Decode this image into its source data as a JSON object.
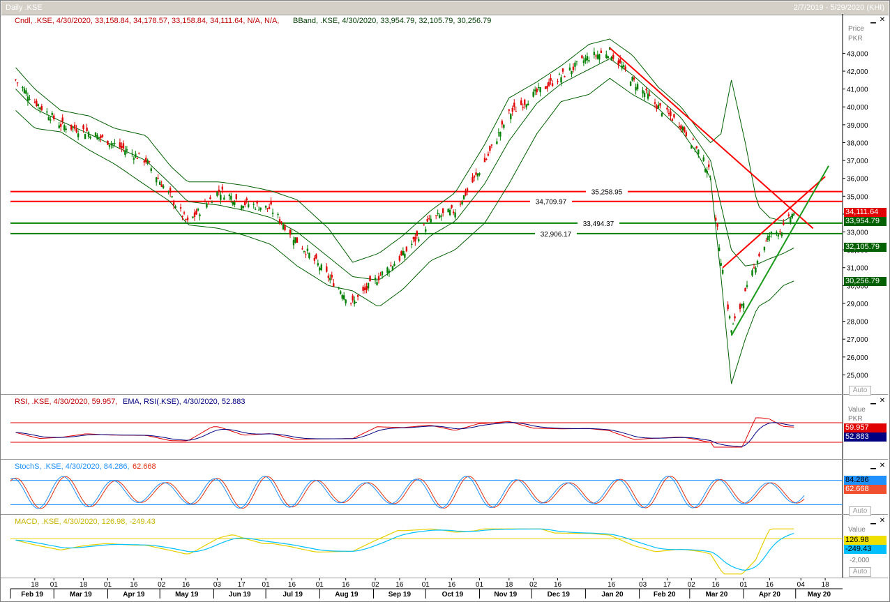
{
  "window": {
    "title": "Daily .KSE",
    "range": "2/7/2019 - 5/29/2020 (KHI)"
  },
  "price_panel": {
    "cndl_legend": "Cndl, .KSE, 4/30/2020, 33,158.84, 34,178.57, 33,158.84, 34,111.64, N/A, N/A,",
    "bband_legend": "BBand, .KSE, 4/30/2020, 33,954.79, 32,105.79, 30,256.79",
    "axis_title": "Price",
    "axis_unit": "PKR",
    "auto_label": "Auto",
    "last_close_box": "34,111.64",
    "bb_upper_box": "33,954.79",
    "bb_mid_box": "32,105.79",
    "bb_lower_box": "30,256.79",
    "hline_labels": [
      "35,258.95",
      "34,709.97",
      "33,494.37",
      "32,906.17"
    ]
  },
  "rsi_panel": {
    "legend_a": "RSI, .KSE, 4/30/2020, 59.957,",
    "legend_b": "EMA, RSI(.KSE), 4/30/2020, 52.883",
    "axis_title": "Value",
    "axis_unit": "PKR",
    "value_box_1": "59.957",
    "value_box_2": "52.883"
  },
  "stoch_panel": {
    "legend_a": "StochS, .KSE, 4/30/2020, 84.286,",
    "legend_b": "62.668",
    "auto_label": "Auto",
    "value_box_1": "84.286",
    "value_box_2": "62.668"
  },
  "macd_panel": {
    "legend": "MACD, .KSE, 4/30/2020, 126.98, -249.43",
    "axis_title": "Value",
    "tick": "-2,000",
    "auto_label": "Auto",
    "value_box_1": "126.98",
    "value_box_2": "-249.43"
  },
  "x_axis": {
    "day_ticks": [
      "18",
      "01",
      "18",
      "01",
      "16",
      "02",
      "16",
      "03",
      "17",
      "01",
      "16",
      "01",
      "16",
      "02",
      "16",
      "01",
      "16",
      "01",
      "18",
      "02",
      "16",
      "16",
      "03",
      "17",
      "02",
      "16",
      "01",
      "16",
      "04",
      "18"
    ],
    "month_labels": [
      "Feb 19",
      "Mar 19",
      "Apr 19",
      "May 19",
      "Jun 19",
      "Jul 19",
      "Aug 19",
      "Sep 19",
      "Oct 19",
      "Nov 19",
      "Dec 19",
      "Jan 20",
      "Feb 20",
      "Mar 20",
      "Apr 20",
      "May 20"
    ]
  },
  "colors": {
    "candle_up": "#008000",
    "candle_down": "#e00000",
    "resistance": "#ff0000",
    "support": "#008000",
    "bband": "#006000",
    "rsi": "#e00000",
    "rsi_ema": "#000080",
    "stoch_k": "#1e90ff",
    "stoch_d": "#e03010",
    "macd": "#e8d000",
    "macd_signal": "#00bfff"
  },
  "chart_data": {
    "type": "line",
    "title": "Daily .KSE",
    "ylabel": "Price PKR",
    "ylim": [
      24000,
      44500
    ],
    "y_ticks": [
      43000,
      42000,
      41000,
      40000,
      39000,
      38000,
      37000,
      36000,
      35000,
      34000,
      33000,
      32000,
      31000,
      30000,
      29000,
      28000,
      27000,
      26000,
      25000
    ],
    "x": [
      "2019-02-07",
      "2019-02-18",
      "2019-03-05",
      "2019-03-21",
      "2019-04-05",
      "2019-04-23",
      "2019-05-07",
      "2019-05-17",
      "2019-06-04",
      "2019-06-19",
      "2019-07-04",
      "2019-07-19",
      "2019-08-06",
      "2019-08-20",
      "2019-09-04",
      "2019-09-18",
      "2019-10-04",
      "2019-10-18",
      "2019-11-04",
      "2019-11-18",
      "2019-12-04",
      "2019-12-18",
      "2020-01-03",
      "2020-01-15",
      "2020-01-28",
      "2020-02-12",
      "2020-02-25",
      "2020-03-06",
      "2020-03-13",
      "2020-03-19",
      "2020-03-25",
      "2020-04-02",
      "2020-04-09",
      "2020-04-16",
      "2020-04-24",
      "2020-04-30"
    ],
    "series": [
      {
        "name": "Cndl, .KSE",
        "values": [
          41500,
          40300,
          39000,
          38600,
          37900,
          37000,
          35000,
          33500,
          35300,
          34600,
          34300,
          32500,
          30500,
          29000,
          30500,
          31700,
          33700,
          34200,
          36900,
          39600,
          40800,
          41700,
          42800,
          43100,
          41500,
          40000,
          39000,
          37500,
          36200,
          31500,
          27500,
          29500,
          31500,
          32800,
          33200,
          34111.64
        ]
      },
      {
        "name": "BBand upper",
        "values": [
          42200,
          41000,
          39800,
          39500,
          38800,
          38400,
          36700,
          35800,
          35800,
          35600,
          35300,
          34800,
          33200,
          31300,
          31800,
          32800,
          34200,
          35200,
          37900,
          40500,
          41400,
          42300,
          43500,
          43800,
          42900,
          41100,
          40000,
          38700,
          38000,
          38500,
          41500,
          38000,
          34500,
          33800,
          33600,
          33954.79
        ]
      },
      {
        "name": "BBand middle",
        "values": [
          41000,
          39900,
          39200,
          38500,
          37800,
          37000,
          35700,
          34700,
          34500,
          34200,
          33800,
          33000,
          31600,
          30500,
          30300,
          31300,
          32800,
          33600,
          35700,
          38100,
          40200,
          41300,
          42100,
          42700,
          41800,
          40500,
          39400,
          38000,
          37000,
          34500,
          32000,
          31100,
          31200,
          31500,
          31800,
          32105.79
        ]
      },
      {
        "name": "BBand lower",
        "values": [
          39800,
          38800,
          38600,
          37600,
          36800,
          35600,
          34700,
          33400,
          33200,
          32800,
          32300,
          31100,
          30000,
          29700,
          28800,
          29800,
          31400,
          32000,
          33500,
          35700,
          38500,
          40300,
          40700,
          41600,
          40700,
          39900,
          38700,
          37300,
          36000,
          30500,
          24500,
          27000,
          28800,
          29200,
          30000,
          30256.79
        ]
      }
    ],
    "hlines": [
      {
        "value": 35258.95,
        "color": "red"
      },
      {
        "value": 34709.97,
        "color": "red"
      },
      {
        "value": 33494.37,
        "color": "green"
      },
      {
        "value": 32906.17,
        "color": "green"
      }
    ],
    "trendlines": [
      {
        "color": "red",
        "from": [
          "2020-01-15",
          43300
        ],
        "to": [
          "2020-05-11",
          33200
        ]
      },
      {
        "color": "red",
        "from": [
          "2020-03-20",
          31000
        ],
        "to": [
          "2020-05-18",
          36100
        ]
      },
      {
        "color": "green",
        "from": [
          "2020-03-25",
          27200
        ],
        "to": [
          "2020-05-20",
          36700
        ]
      }
    ],
    "rsi": {
      "last": 59.957,
      "ema_last": 52.883
    },
    "stoch": {
      "k_last": 84.286,
      "d_last": 62.668
    },
    "macd": {
      "macd_last": 126.98,
      "signal_last": -249.43
    }
  }
}
